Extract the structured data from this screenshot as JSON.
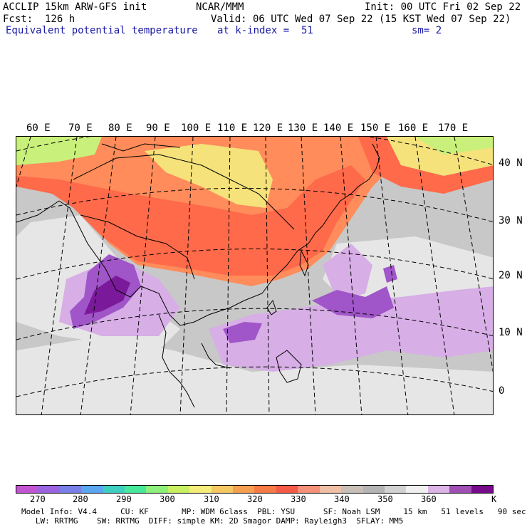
{
  "header": {
    "model_line": "ACCLIP 15km ARW-GFS init",
    "org": "NCAR/MMM",
    "init": "Init: 00 UTC Fri 02 Sep 22",
    "fcst": "Fcst:  126 h",
    "valid": "Valid: 06 UTC Wed 07 Sep 22 (15 KST Wed 07 Sep 22)",
    "field": "Equivalent potential temperature",
    "level": "at k-index =  51",
    "smooth": "sm= 2"
  },
  "map": {
    "lon_labels": [
      "60 E",
      "70 E",
      "80 E",
      "90 E",
      "100 E",
      "110 E",
      "120 E",
      "130 E",
      "140 E",
      "150 E",
      "160 E",
      "170 E"
    ],
    "lat_labels": [
      "40 N",
      "30 N",
      "20 N",
      "10 N",
      "0"
    ],
    "colors": {
      "hot": "#ff6a4a",
      "warm": "#ff8c5a",
      "yellow": "#f5e27a",
      "green": "#c8f07a",
      "gray": "#c8c8c8",
      "lightgray": "#e6e6e6",
      "lavender": "#d7aee6",
      "purple": "#a055c8",
      "darkpurple": "#7a1a9a"
    }
  },
  "colorbar": {
    "unit": "K",
    "labels": [
      "270",
      "280",
      "290",
      "300",
      "310",
      "320",
      "330",
      "340",
      "350",
      "360"
    ],
    "colors": [
      "#c455d2",
      "#9a64e0",
      "#7a7fe8",
      "#5aa6f0",
      "#3fcfc0",
      "#46e89a",
      "#8cf07a",
      "#c8f060",
      "#f5ed7a",
      "#f5c864",
      "#f5a050",
      "#f57a46",
      "#f55a46",
      "#f5907a",
      "#f0c0a6",
      "#c8c0b8",
      "#b4b4b4",
      "#d2d2d2",
      "#f0f0f0",
      "#dcb4e6",
      "#a050b4",
      "#780a8c"
    ]
  },
  "footer": {
    "line1": "Model Info: V4.4     CU: KF       MP: WDM 6class  PBL: YSU      SF: Noah LSM     15 km   51 levels   90 sec",
    "line2": "   LW: RRTMG    SW: RRTMG  DIFF: simple KM: 2D Smagor DAMP: Rayleigh3  SFLAY: MM5"
  }
}
